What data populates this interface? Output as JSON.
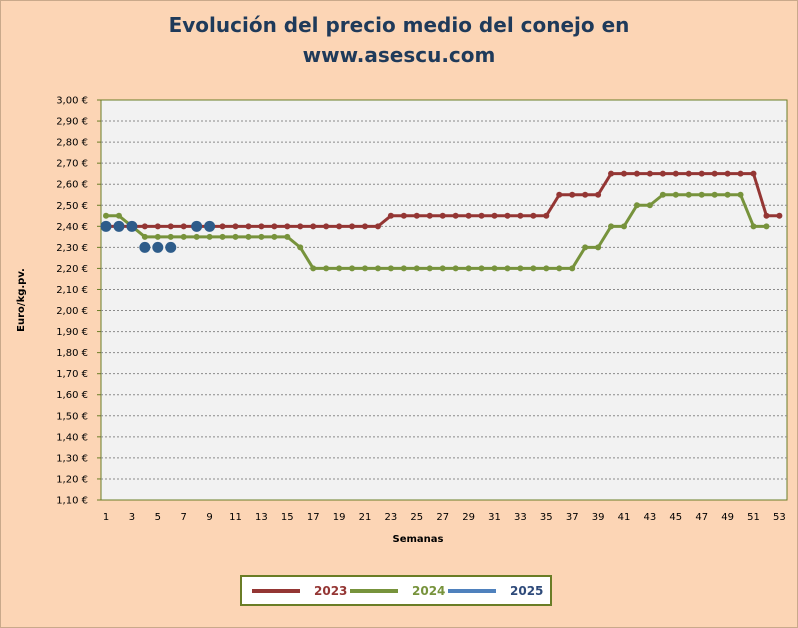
{
  "chart_data": {
    "type": "line",
    "title_line1": "Evolución del precio medio del conejo en",
    "title_line2": "www.asescu.com",
    "xlabel": "Semanas",
    "ylabel": "Euro/kg.pv.",
    "ylim": [
      1.1,
      3.0
    ],
    "xlim": [
      1,
      53
    ],
    "y_ticks": [
      "3,00 €",
      "2,90 €",
      "2,80 €",
      "2,70 €",
      "2,60 €",
      "2,50 €",
      "2,40 €",
      "2,30 €",
      "2,20 €",
      "2,10 €",
      "2,00 €",
      "1,90 €",
      "1,80 €",
      "1,70 €",
      "1,60 €",
      "1,50 €",
      "1,40 €",
      "1,30 €",
      "1,20 €",
      "1,10 €"
    ],
    "x_ticks": [
      "1",
      "3",
      "5",
      "7",
      "9",
      "11",
      "13",
      "15",
      "17",
      "19",
      "21",
      "23",
      "25",
      "27",
      "29",
      "31",
      "33",
      "35",
      "37",
      "39",
      "41",
      "43",
      "45",
      "47",
      "49",
      "51",
      "53"
    ],
    "grid": true,
    "legend_position": "bottom",
    "series": [
      {
        "name": "2023",
        "color": "#943634",
        "marker_size": "small",
        "x": [
          1,
          2,
          3,
          4,
          5,
          6,
          7,
          8,
          9,
          10,
          11,
          12,
          13,
          14,
          15,
          16,
          17,
          18,
          19,
          20,
          21,
          22,
          23,
          24,
          25,
          26,
          27,
          28,
          29,
          30,
          31,
          32,
          33,
          34,
          35,
          36,
          37,
          38,
          39,
          40,
          41,
          42,
          43,
          44,
          45,
          46,
          47,
          48,
          49,
          50,
          51,
          52,
          53
        ],
        "values": [
          2.4,
          2.4,
          2.4,
          2.4,
          2.4,
          2.4,
          2.4,
          2.4,
          2.4,
          2.4,
          2.4,
          2.4,
          2.4,
          2.4,
          2.4,
          2.4,
          2.4,
          2.4,
          2.4,
          2.4,
          2.4,
          2.4,
          2.45,
          2.45,
          2.45,
          2.45,
          2.45,
          2.45,
          2.45,
          2.45,
          2.45,
          2.45,
          2.45,
          2.45,
          2.45,
          2.55,
          2.55,
          2.55,
          2.55,
          2.65,
          2.65,
          2.65,
          2.65,
          2.65,
          2.65,
          2.65,
          2.65,
          2.65,
          2.65,
          2.65,
          2.65,
          2.45,
          2.45
        ]
      },
      {
        "name": "2024",
        "color": "#77933C",
        "marker_size": "small",
        "x": [
          1,
          2,
          3,
          4,
          5,
          6,
          7,
          8,
          9,
          10,
          11,
          12,
          13,
          14,
          15,
          16,
          17,
          18,
          19,
          20,
          21,
          22,
          23,
          24,
          25,
          26,
          27,
          28,
          29,
          30,
          31,
          32,
          33,
          34,
          35,
          36,
          37,
          38,
          39,
          40,
          41,
          42,
          43,
          44,
          45,
          46,
          47,
          48,
          49,
          50,
          51,
          52
        ],
        "values": [
          2.45,
          2.45,
          2.4,
          2.35,
          2.35,
          2.35,
          2.35,
          2.35,
          2.35,
          2.35,
          2.35,
          2.35,
          2.35,
          2.35,
          2.35,
          2.3,
          2.2,
          2.2,
          2.2,
          2.2,
          2.2,
          2.2,
          2.2,
          2.2,
          2.2,
          2.2,
          2.2,
          2.2,
          2.2,
          2.2,
          2.2,
          2.2,
          2.2,
          2.2,
          2.2,
          2.2,
          2.2,
          2.3,
          2.3,
          2.4,
          2.4,
          2.5,
          2.5,
          2.55,
          2.55,
          2.55,
          2.55,
          2.55,
          2.55,
          2.55,
          2.4,
          2.4
        ]
      },
      {
        "name": "2025",
        "color": "#2E5C8A",
        "marker_size": "large",
        "points": [
          [
            1,
            2.4
          ],
          [
            2,
            2.4
          ],
          [
            3,
            2.4
          ],
          [
            4,
            2.3
          ],
          [
            5,
            2.3
          ],
          [
            6,
            2.3
          ],
          [
            8,
            2.4
          ],
          [
            9,
            2.4
          ]
        ]
      }
    ]
  }
}
